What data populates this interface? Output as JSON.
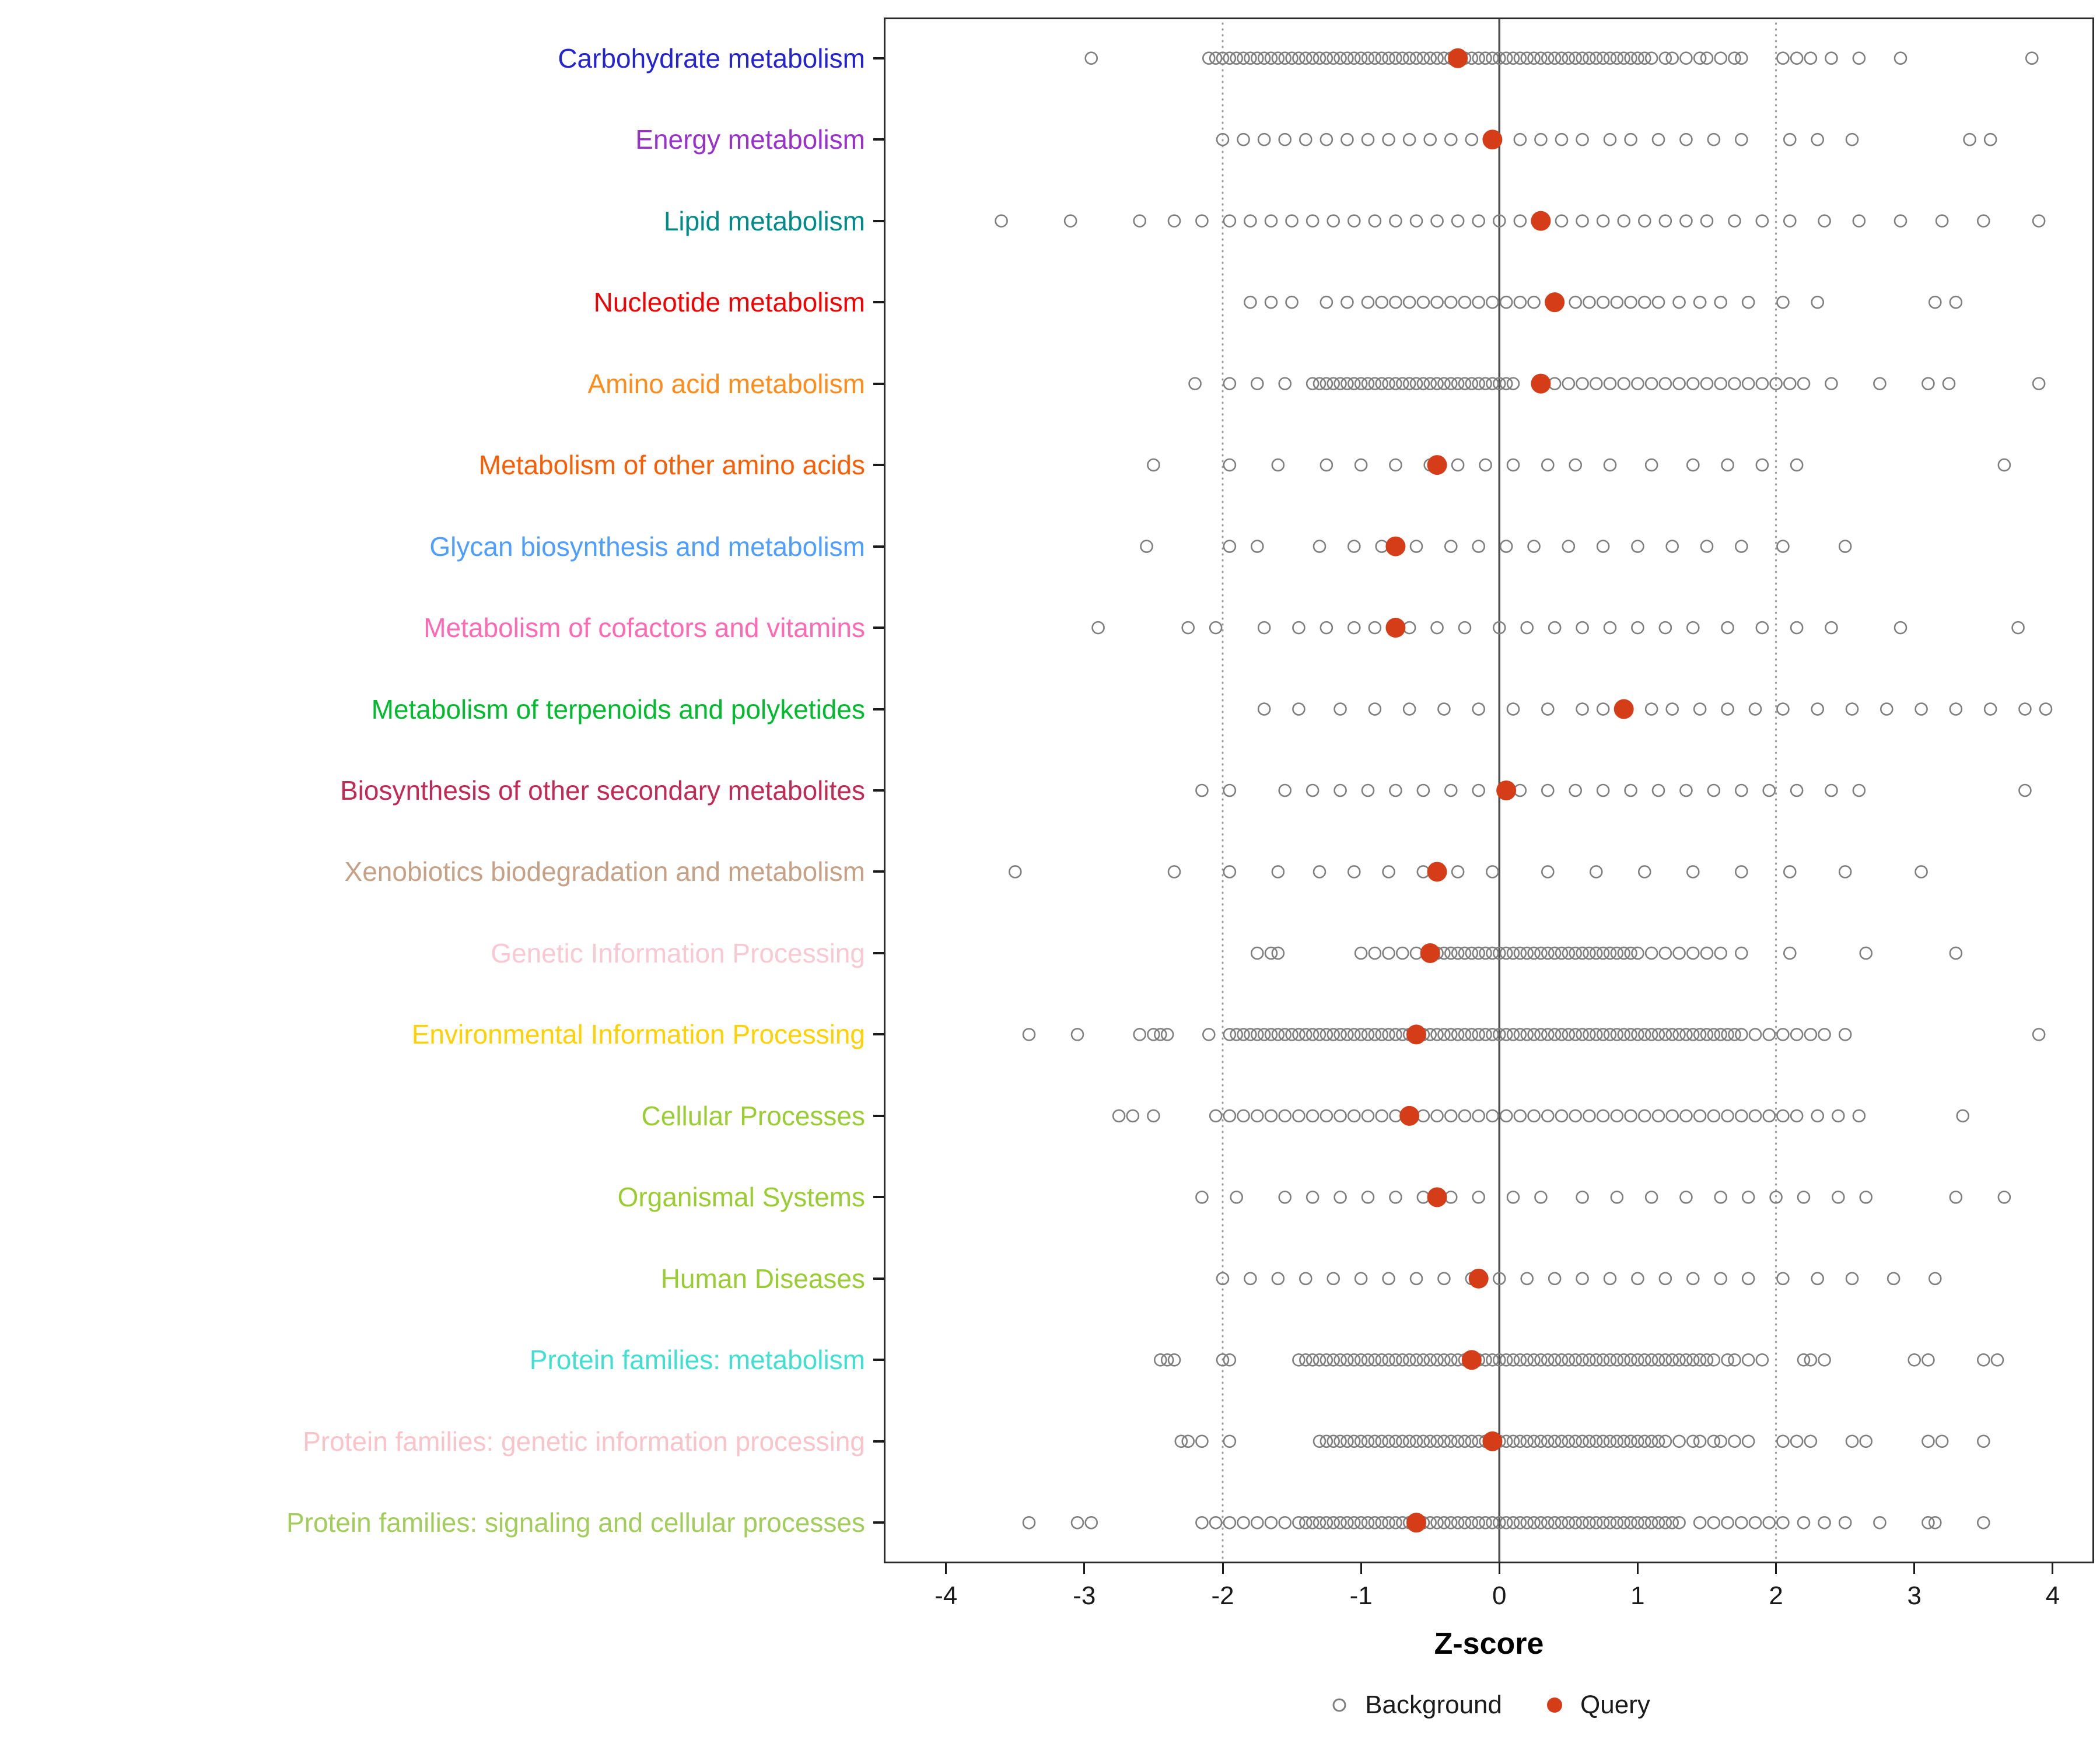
{
  "chart_data": {
    "type": "scatter",
    "title": "",
    "xlabel": "Z-score",
    "xlim": [
      -4.45,
      4.3
    ],
    "x_ticks": [
      -4,
      -3,
      -2,
      -1,
      0,
      1,
      2,
      3,
      4
    ],
    "reference_lines": {
      "dotted_x": [
        -2,
        2
      ],
      "solid_x": [
        0
      ]
    },
    "legend_labels": {
      "background": "Background",
      "query": "Query"
    },
    "colors": {
      "background_point": "#7f7f7f",
      "query_point": "#d43d17",
      "reference_dotted": "#9a9a9a",
      "reference_solid": "#4d4d4d",
      "axis_text": "#1a1a1a",
      "panel_border": "#2b2b2b"
    },
    "categories": [
      {
        "name": "Carbohydrate metabolism",
        "label_color": "#2323d1",
        "query": -0.3,
        "background": [
          -2.95,
          -2.1,
          -2.05,
          -2,
          -1.95,
          -1.9,
          -1.85,
          -1.8,
          -1.75,
          -1.7,
          -1.65,
          -1.6,
          -1.55,
          -1.5,
          -1.45,
          -1.4,
          -1.35,
          -1.3,
          -1.25,
          -1.2,
          -1.15,
          -1.1,
          -1.05,
          -1,
          -0.95,
          -0.9,
          -0.85,
          -0.8,
          -0.75,
          -0.7,
          -0.65,
          -0.6,
          -0.55,
          -0.5,
          -0.45,
          -0.4,
          -0.35,
          -0.3,
          -0.25,
          -0.2,
          -0.15,
          -0.1,
          -0.05,
          0,
          0.05,
          0.1,
          0.15,
          0.2,
          0.25,
          0.3,
          0.35,
          0.4,
          0.45,
          0.5,
          0.55,
          0.6,
          0.65,
          0.7,
          0.75,
          0.8,
          0.85,
          0.9,
          0.95,
          1,
          1.05,
          1.1,
          1.2,
          1.25,
          1.35,
          1.45,
          1.5,
          1.6,
          1.7,
          1.75,
          2.05,
          2.15,
          2.25,
          2.4,
          2.6,
          2.9,
          3.85
        ]
      },
      {
        "name": "Energy metabolism",
        "label_color": "#9932cc",
        "query": -0.05,
        "background": [
          -2,
          -1.85,
          -1.7,
          -1.55,
          -1.4,
          -1.25,
          -1.1,
          -0.95,
          -0.8,
          -0.65,
          -0.5,
          -0.35,
          -0.2,
          0.15,
          0.3,
          0.45,
          0.6,
          0.8,
          0.95,
          1.15,
          1.35,
          1.55,
          1.75,
          2.1,
          2.3,
          2.55,
          3.4,
          3.55
        ]
      },
      {
        "name": "Lipid metabolism",
        "label_color": "#008b8b",
        "query": 0.3,
        "background": [
          -3.6,
          -3.1,
          -2.6,
          -2.35,
          -2.15,
          -1.95,
          -1.8,
          -1.65,
          -1.5,
          -1.35,
          -1.2,
          -1.05,
          -0.9,
          -0.75,
          -0.6,
          -0.45,
          -0.3,
          -0.15,
          0,
          0.15,
          0.45,
          0.6,
          0.75,
          0.9,
          1.05,
          1.2,
          1.35,
          1.5,
          1.7,
          1.9,
          2.1,
          2.35,
          2.6,
          2.9,
          3.2,
          3.5,
          3.9
        ]
      },
      {
        "name": "Nucleotide metabolism",
        "label_color": "#f40000",
        "query": 0.4,
        "background": [
          -1.8,
          -1.65,
          -1.5,
          -1.25,
          -1.1,
          -0.95,
          -0.85,
          -0.75,
          -0.65,
          -0.55,
          -0.45,
          -0.35,
          -0.25,
          -0.15,
          -0.05,
          0.05,
          0.15,
          0.25,
          0.55,
          0.65,
          0.75,
          0.85,
          0.95,
          1.05,
          1.15,
          1.3,
          1.45,
          1.6,
          1.8,
          2.05,
          2.3,
          3.15,
          3.3
        ]
      },
      {
        "name": "Amino acid metabolism",
        "label_color": "#ff8c1a",
        "query": 0.3,
        "background": [
          -2.2,
          -1.95,
          -1.75,
          -1.55,
          -1.35,
          -1.3,
          -1.25,
          -1.2,
          -1.15,
          -1.1,
          -1.05,
          -1,
          -0.95,
          -0.9,
          -0.85,
          -0.8,
          -0.75,
          -0.7,
          -0.65,
          -0.6,
          -0.55,
          -0.5,
          -0.45,
          -0.4,
          -0.35,
          -0.3,
          -0.25,
          -0.2,
          -0.15,
          -0.1,
          -0.05,
          0,
          0.05,
          0.1,
          0.4,
          0.5,
          0.6,
          0.7,
          0.8,
          0.9,
          1,
          1.1,
          1.2,
          1.3,
          1.4,
          1.5,
          1.6,
          1.7,
          1.8,
          1.9,
          2,
          2.1,
          2.2,
          2.4,
          2.75,
          3.1,
          3.25,
          3.9
        ]
      },
      {
        "name": "Metabolism of other amino acids",
        "label_color": "#fa5d02",
        "query": -0.45,
        "background": [
          -2.5,
          -1.95,
          -1.6,
          -1.25,
          -1,
          -0.75,
          -0.5,
          -0.3,
          -0.1,
          0.1,
          0.35,
          0.55,
          0.8,
          1.1,
          1.4,
          1.65,
          1.9,
          2.15,
          3.65
        ]
      },
      {
        "name": "Glycan biosynthesis and metabolism",
        "label_color": "#4d9eff",
        "query": -0.75,
        "background": [
          -2.55,
          -1.95,
          -1.75,
          -1.3,
          -1.05,
          -0.85,
          -0.6,
          -0.35,
          -0.15,
          0.05,
          0.25,
          0.5,
          0.75,
          1,
          1.25,
          1.5,
          1.75,
          2.05,
          2.5
        ]
      },
      {
        "name": "Metabolism of cofactors and vitamins",
        "label_color": "#ff69b4",
        "query": -0.75,
        "background": [
          -2.9,
          -2.25,
          -2.05,
          -1.7,
          -1.45,
          -1.25,
          -1.05,
          -0.9,
          -0.65,
          -0.45,
          -0.25,
          0,
          0.2,
          0.4,
          0.6,
          0.8,
          1,
          1.2,
          1.4,
          1.65,
          1.9,
          2.15,
          2.4,
          2.9,
          3.75
        ]
      },
      {
        "name": "Metabolism of terpenoids and polyketides",
        "label_color": "#00bb2d",
        "query": 0.9,
        "background": [
          -1.7,
          -1.45,
          -1.15,
          -0.9,
          -0.65,
          -0.4,
          -0.15,
          0.1,
          0.35,
          0.6,
          0.75,
          1.1,
          1.25,
          1.45,
          1.65,
          1.85,
          2.05,
          2.3,
          2.55,
          2.8,
          3.05,
          3.3,
          3.55,
          3.8,
          3.95
        ]
      },
      {
        "name": "Biosynthesis of other secondary metabolites",
        "label_color": "#c22a56",
        "query": 0.05,
        "background": [
          -2.15,
          -1.95,
          -1.55,
          -1.35,
          -1.15,
          -0.95,
          -0.75,
          -0.55,
          -0.35,
          -0.15,
          0.15,
          0.35,
          0.55,
          0.75,
          0.95,
          1.15,
          1.35,
          1.55,
          1.75,
          1.95,
          2.15,
          2.4,
          2.6,
          3.8
        ]
      },
      {
        "name": "Xenobiotics biodegradation and metabolism",
        "label_color": "#c7a186",
        "query": -0.45,
        "background": [
          -3.5,
          -2.35,
          -1.95,
          -1.6,
          -1.3,
          -1.05,
          -0.8,
          -0.55,
          -0.3,
          -0.05,
          0.35,
          0.7,
          1.05,
          1.4,
          1.75,
          2.1,
          2.5,
          3.05
        ]
      },
      {
        "name": "Genetic Information Processing",
        "label_color": "#fac8d2",
        "query": -0.5,
        "background": [
          -1.75,
          -1.65,
          -1.6,
          -1,
          -0.9,
          -0.8,
          -0.7,
          -0.6,
          -0.5,
          -0.45,
          -0.4,
          -0.35,
          -0.3,
          -0.25,
          -0.2,
          -0.15,
          -0.1,
          -0.05,
          0,
          0.05,
          0.1,
          0.15,
          0.2,
          0.25,
          0.3,
          0.35,
          0.4,
          0.45,
          0.5,
          0.55,
          0.6,
          0.65,
          0.7,
          0.75,
          0.8,
          0.85,
          0.9,
          0.95,
          1,
          1.1,
          1.2,
          1.3,
          1.4,
          1.5,
          1.6,
          1.75,
          2.1,
          2.65,
          3.3
        ]
      },
      {
        "name": "Environmental Information Processing",
        "label_color": "#ffd100",
        "query": -0.6,
        "background": [
          -3.4,
          -3.05,
          -2.6,
          -2.5,
          -2.45,
          -2.4,
          -2.1,
          -1.95,
          -1.9,
          -1.85,
          -1.8,
          -1.75,
          -1.7,
          -1.65,
          -1.6,
          -1.55,
          -1.5,
          -1.45,
          -1.4,
          -1.35,
          -1.3,
          -1.25,
          -1.2,
          -1.15,
          -1.1,
          -1.05,
          -1,
          -0.95,
          -0.9,
          -0.85,
          -0.8,
          -0.75,
          -0.7,
          -0.65,
          -0.6,
          -0.55,
          -0.5,
          -0.45,
          -0.4,
          -0.35,
          -0.3,
          -0.25,
          -0.2,
          -0.15,
          -0.1,
          -0.05,
          0,
          0.05,
          0.1,
          0.15,
          0.2,
          0.25,
          0.3,
          0.35,
          0.4,
          0.45,
          0.5,
          0.55,
          0.6,
          0.65,
          0.7,
          0.75,
          0.8,
          0.85,
          0.9,
          0.95,
          1,
          1.05,
          1.1,
          1.15,
          1.2,
          1.25,
          1.3,
          1.35,
          1.4,
          1.45,
          1.5,
          1.55,
          1.6,
          1.65,
          1.7,
          1.75,
          1.85,
          1.95,
          2.05,
          2.15,
          2.25,
          2.35,
          2.5,
          3.9
        ]
      },
      {
        "name": "Cellular Processes",
        "label_color": "#9acd32",
        "query": -0.65,
        "background": [
          -2.75,
          -2.65,
          -2.5,
          -2.05,
          -1.95,
          -1.85,
          -1.75,
          -1.65,
          -1.55,
          -1.45,
          -1.35,
          -1.25,
          -1.15,
          -1.05,
          -0.95,
          -0.85,
          -0.75,
          -0.65,
          -0.55,
          -0.45,
          -0.35,
          -0.25,
          -0.15,
          -0.05,
          0.05,
          0.15,
          0.25,
          0.35,
          0.45,
          0.55,
          0.65,
          0.75,
          0.85,
          0.95,
          1.05,
          1.15,
          1.25,
          1.35,
          1.45,
          1.55,
          1.65,
          1.75,
          1.85,
          1.95,
          2.05,
          2.15,
          2.3,
          2.45,
          2.6,
          3.35
        ]
      },
      {
        "name": "Organismal Systems",
        "label_color": "#9acd32",
        "query": -0.45,
        "background": [
          -2.15,
          -1.9,
          -1.55,
          -1.35,
          -1.15,
          -0.95,
          -0.75,
          -0.55,
          -0.35,
          -0.15,
          0.1,
          0.3,
          0.6,
          0.85,
          1.1,
          1.35,
          1.6,
          1.8,
          2,
          2.2,
          2.45,
          2.65,
          3.3,
          3.65
        ]
      },
      {
        "name": "Human Diseases",
        "label_color": "#9acd32",
        "query": -0.15,
        "background": [
          -2,
          -1.8,
          -1.6,
          -1.4,
          -1.2,
          -1,
          -0.8,
          -0.6,
          -0.4,
          -0.2,
          0,
          0.2,
          0.4,
          0.6,
          0.8,
          1,
          1.2,
          1.4,
          1.6,
          1.8,
          2.05,
          2.3,
          2.55,
          2.85,
          3.15
        ]
      },
      {
        "name": "Protein families: metabolism",
        "label_color": "#40e0d0",
        "query": -0.2,
        "background": [
          -2.45,
          -2.4,
          -2.35,
          -2,
          -1.95,
          -1.45,
          -1.4,
          -1.35,
          -1.3,
          -1.25,
          -1.2,
          -1.15,
          -1.1,
          -1.05,
          -1,
          -0.95,
          -0.9,
          -0.85,
          -0.8,
          -0.75,
          -0.7,
          -0.65,
          -0.6,
          -0.55,
          -0.5,
          -0.45,
          -0.4,
          -0.35,
          -0.3,
          -0.25,
          -0.2,
          -0.15,
          -0.1,
          -0.05,
          0,
          0.05,
          0.1,
          0.15,
          0.2,
          0.25,
          0.3,
          0.35,
          0.4,
          0.45,
          0.5,
          0.55,
          0.6,
          0.65,
          0.7,
          0.75,
          0.8,
          0.85,
          0.9,
          0.95,
          1,
          1.05,
          1.1,
          1.15,
          1.2,
          1.25,
          1.3,
          1.35,
          1.4,
          1.45,
          1.5,
          1.55,
          1.65,
          1.7,
          1.8,
          1.9,
          2.2,
          2.25,
          2.35,
          3,
          3.1,
          3.5,
          3.6
        ]
      },
      {
        "name": "Protein families: genetic information processing",
        "label_color": "#fac3ca",
        "query": -0.05,
        "background": [
          -2.3,
          -2.25,
          -2.15,
          -1.95,
          -1.3,
          -1.25,
          -1.2,
          -1.15,
          -1.1,
          -1.05,
          -1,
          -0.95,
          -0.9,
          -0.85,
          -0.8,
          -0.75,
          -0.7,
          -0.65,
          -0.6,
          -0.55,
          -0.5,
          -0.45,
          -0.4,
          -0.35,
          -0.3,
          -0.25,
          -0.2,
          -0.15,
          -0.1,
          -0.05,
          0,
          0.05,
          0.1,
          0.15,
          0.2,
          0.25,
          0.3,
          0.35,
          0.4,
          0.45,
          0.5,
          0.55,
          0.6,
          0.65,
          0.7,
          0.75,
          0.8,
          0.85,
          0.9,
          0.95,
          1,
          1.05,
          1.1,
          1.15,
          1.2,
          1.3,
          1.4,
          1.45,
          1.55,
          1.6,
          1.7,
          1.8,
          2.05,
          2.15,
          2.25,
          2.55,
          2.65,
          3.1,
          3.2,
          3.5
        ]
      },
      {
        "name": "Protein families: signaling and cellular processes",
        "label_color": "#a2cd5a",
        "query": -0.6,
        "background": [
          -3.4,
          -3.05,
          -2.95,
          -2.15,
          -2.05,
          -1.95,
          -1.85,
          -1.75,
          -1.65,
          -1.55,
          -1.45,
          -1.4,
          -1.35,
          -1.3,
          -1.25,
          -1.2,
          -1.15,
          -1.1,
          -1.05,
          -1,
          -0.95,
          -0.9,
          -0.85,
          -0.8,
          -0.75,
          -0.7,
          -0.65,
          -0.6,
          -0.55,
          -0.5,
          -0.45,
          -0.4,
          -0.35,
          -0.3,
          -0.25,
          -0.2,
          -0.15,
          -0.1,
          -0.05,
          0,
          0.05,
          0.1,
          0.15,
          0.2,
          0.25,
          0.3,
          0.35,
          0.4,
          0.45,
          0.5,
          0.55,
          0.6,
          0.65,
          0.7,
          0.75,
          0.8,
          0.85,
          0.9,
          0.95,
          1,
          1.05,
          1.1,
          1.15,
          1.2,
          1.25,
          1.3,
          1.45,
          1.55,
          1.65,
          1.75,
          1.85,
          1.95,
          2.05,
          2.2,
          2.35,
          2.5,
          2.75,
          3.1,
          3.15,
          3.5
        ]
      }
    ]
  }
}
